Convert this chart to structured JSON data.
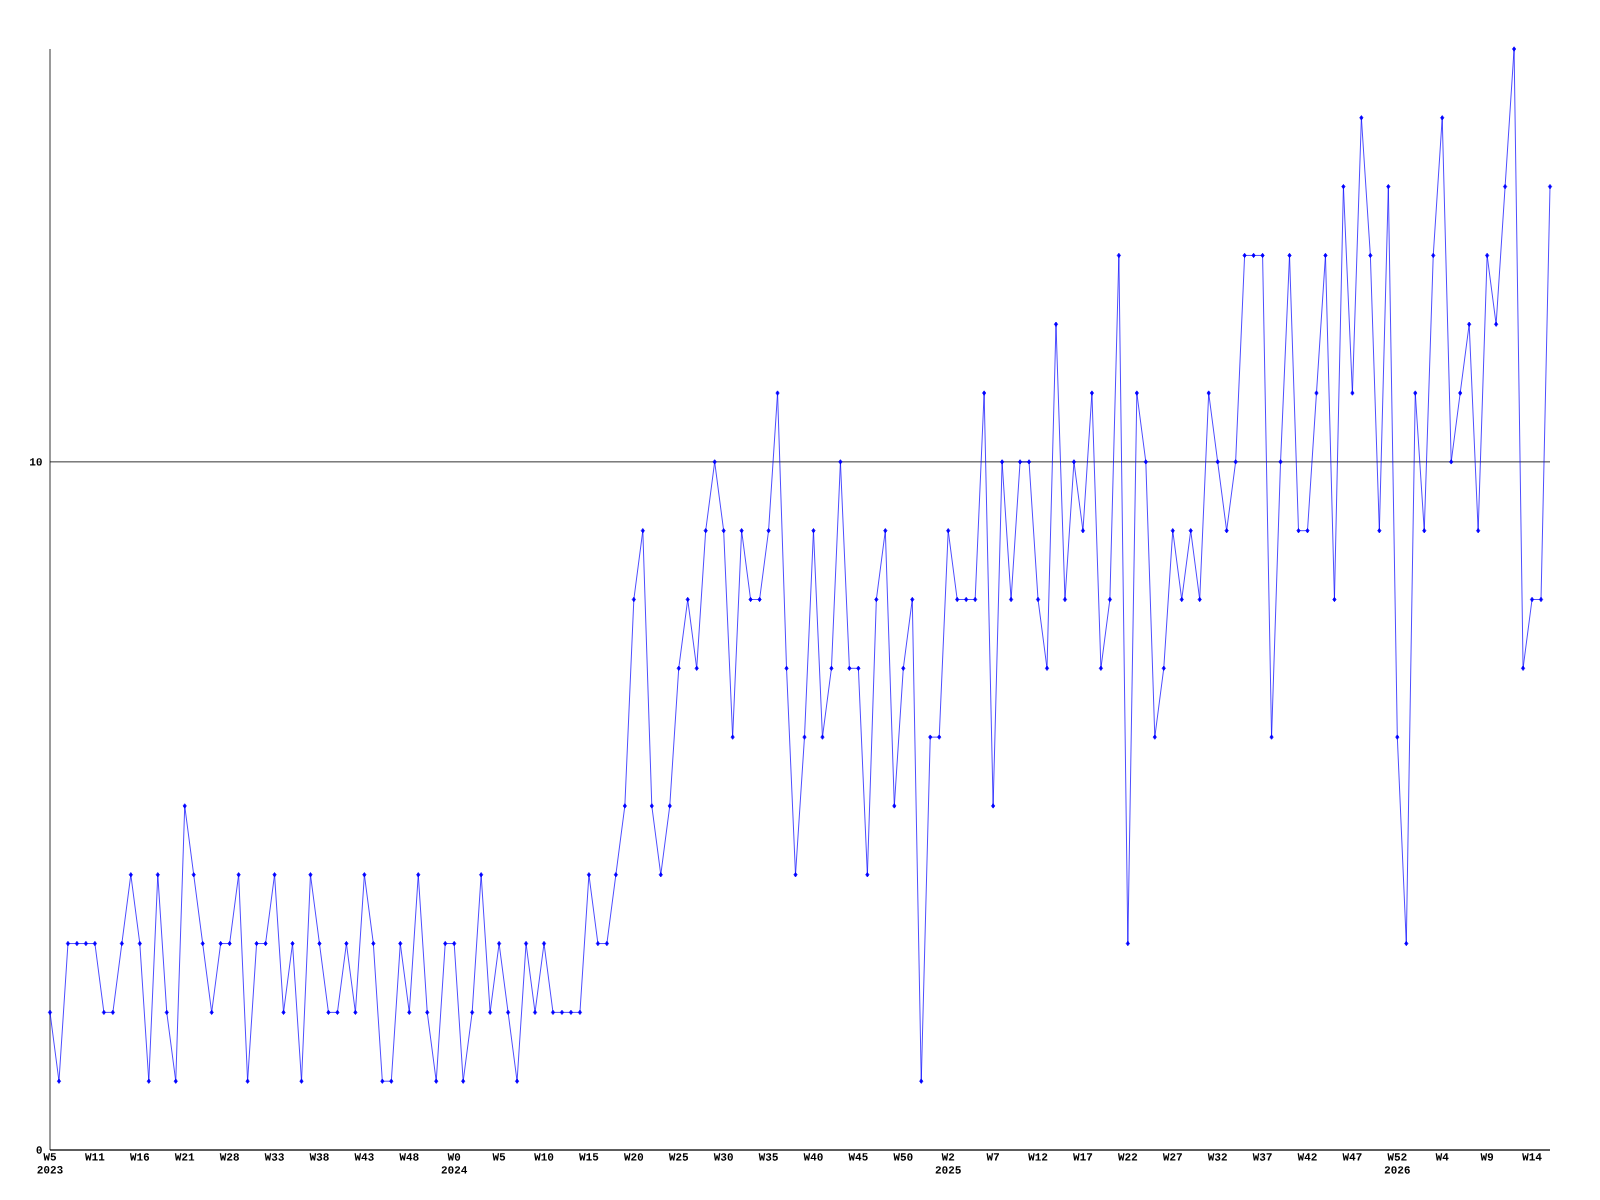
{
  "chart_data": {
    "type": "line",
    "categories": [
      "W5 2023",
      null,
      null,
      null,
      null,
      "W11",
      null,
      null,
      null,
      null,
      "W16",
      null,
      null,
      null,
      null,
      "W21",
      null,
      null,
      null,
      null,
      "W28",
      null,
      null,
      null,
      null,
      "W33",
      null,
      null,
      null,
      null,
      "W38",
      null,
      null,
      null,
      null,
      "W43",
      null,
      null,
      null,
      null,
      "W48",
      null,
      null,
      null,
      null,
      "W0 2024",
      null,
      null,
      null,
      null,
      "W5",
      null,
      null,
      null,
      null,
      "W10",
      null,
      null,
      null,
      null,
      "W15",
      null,
      null,
      null,
      null,
      "W20",
      null,
      null,
      null,
      null,
      "W25",
      null,
      null,
      null,
      null,
      "W30",
      null,
      null,
      null,
      null,
      "W35",
      null,
      null,
      null,
      null,
      "W40",
      null,
      null,
      null,
      null,
      "W45",
      null,
      null,
      null,
      null,
      "W50",
      null,
      null,
      null,
      null,
      "W2 2025",
      null,
      null,
      null,
      null,
      "W7",
      null,
      null,
      null,
      null,
      "W12",
      null,
      null,
      null,
      null,
      "W17",
      null,
      null,
      null,
      null,
      "W22",
      null,
      null,
      null,
      null,
      "W27",
      null,
      null,
      null,
      null,
      "W32",
      null,
      null,
      null,
      null,
      "W37",
      null,
      null,
      null,
      null,
      "W42",
      null,
      null,
      null,
      null,
      "W47",
      null,
      null,
      null,
      null,
      "W52 2026",
      null,
      null,
      null,
      null,
      "W4",
      null,
      null,
      null,
      null,
      "W9",
      null,
      null,
      null,
      null,
      "W14",
      null,
      null
    ],
    "values": [
      2,
      1,
      3,
      3,
      3,
      3,
      2,
      2,
      3,
      4,
      3,
      1,
      4,
      2,
      1,
      5,
      4,
      3,
      2,
      3,
      3,
      4,
      1,
      3,
      3,
      4,
      2,
      3,
      1,
      4,
      3,
      2,
      2,
      3,
      2,
      4,
      3,
      1,
      1,
      3,
      2,
      4,
      2,
      1,
      3,
      3,
      1,
      2,
      4,
      2,
      3,
      2,
      1,
      3,
      2,
      3,
      2,
      2,
      2,
      2,
      4,
      3,
      3,
      4,
      5,
      8,
      9,
      5,
      4,
      5,
      7,
      8,
      7,
      9,
      10,
      9,
      6,
      9,
      8,
      8,
      9,
      11,
      7,
      4,
      6,
      9,
      6,
      7,
      10,
      7,
      7,
      4,
      8,
      9,
      5,
      7,
      8,
      1,
      6,
      6,
      9,
      8,
      8,
      8,
      11,
      5,
      10,
      8,
      10,
      10,
      8,
      7,
      12,
      8,
      10,
      9,
      11,
      7,
      8,
      13,
      3,
      11,
      10,
      6,
      7,
      9,
      8,
      9,
      8,
      11,
      10,
      9,
      10,
      13,
      13,
      13,
      6,
      10,
      13,
      9,
      9,
      11,
      13,
      8,
      14,
      11,
      15,
      13,
      9,
      14,
      6,
      3,
      11,
      9,
      13,
      15,
      10,
      11,
      12,
      9,
      13,
      12,
      14,
      16,
      7,
      8,
      8,
      14
    ],
    "color": "#0000ff",
    "marker": "diamond",
    "line_style": "solid",
    "ylim": [
      0,
      16
    ],
    "yticks": [
      0,
      10
    ],
    "grid": "y"
  }
}
